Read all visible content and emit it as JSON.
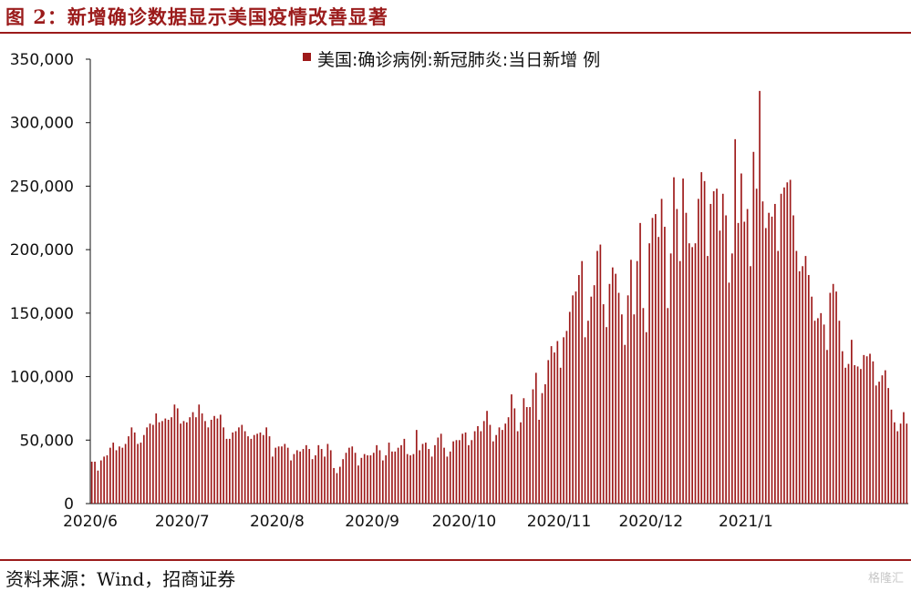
{
  "page": {
    "title": "图 2：新增确诊数据显示美国疫情改善显著",
    "source": "资料来源：Wind，招商证券",
    "watermark": "格隆汇"
  },
  "colors": {
    "accent": "#9b1b1b",
    "bar": "#9e1a1a"
  },
  "chart_data": {
    "type": "bar",
    "title": "",
    "xlabel": "",
    "ylabel": "",
    "ylim": [
      0,
      350000
    ],
    "y_ticks": [
      0,
      50000,
      100000,
      150000,
      200000,
      250000,
      300000,
      350000
    ],
    "y_tick_labels": [
      "0",
      "50,000",
      "100,000",
      "150,000",
      "200,000",
      "250,000",
      "300,000",
      "350,000"
    ],
    "x_ticks": [
      "2020/6",
      "2020/7",
      "2020/8",
      "2020/9",
      "2020/10",
      "2020/11",
      "2020/12",
      "2021/1"
    ],
    "grid": false,
    "legend_position": "top-center",
    "series": [
      {
        "name": "美国:确诊病例:新冠肺炎:当日新增 例",
        "values": [
          33000,
          33000,
          26000,
          34000,
          37000,
          38000,
          44000,
          48000,
          42000,
          45000,
          44000,
          47000,
          53000,
          60000,
          56000,
          47000,
          48000,
          54000,
          60000,
          63000,
          62000,
          71000,
          64000,
          65000,
          67000,
          66000,
          68000,
          78000,
          75000,
          63000,
          65000,
          64000,
          68000,
          72000,
          68000,
          78000,
          71000,
          65000,
          60000,
          66000,
          69000,
          67000,
          70000,
          60000,
          51000,
          51000,
          56000,
          57000,
          60000,
          62000,
          57000,
          53000,
          51000,
          54000,
          55000,
          56000,
          54000,
          60000,
          53000,
          37000,
          44000,
          45000,
          45000,
          47000,
          44000,
          34000,
          39000,
          42000,
          41000,
          43000,
          46000,
          43000,
          35000,
          38000,
          46000,
          43000,
          37000,
          47000,
          42000,
          28000,
          24000,
          29000,
          35000,
          40000,
          44000,
          45000,
          40000,
          30000,
          36000,
          39000,
          38000,
          38000,
          40000,
          46000,
          42000,
          34000,
          38000,
          48000,
          41000,
          41000,
          44000,
          46000,
          51000,
          39000,
          38000,
          39000,
          58000,
          42000,
          47000,
          48000,
          43000,
          37000,
          46000,
          52000,
          55000,
          44000,
          37000,
          41000,
          49000,
          50000,
          50000,
          55000,
          56000,
          46000,
          50000,
          57000,
          61000,
          57000,
          65000,
          73000,
          62000,
          49000,
          54000,
          60000,
          58000,
          63000,
          68000,
          86000,
          75000,
          57000,
          64000,
          83000,
          76000,
          76000,
          90000,
          103000,
          66000,
          87000,
          94000,
          113000,
          124000,
          119000,
          128000,
          107000,
          131000,
          136000,
          151000,
          164000,
          167000,
          180000,
          191000,
          131000,
          144000,
          163000,
          172000,
          199000,
          204000,
          157000,
          139000,
          173000,
          186000,
          181000,
          166000,
          149000,
          125000,
          164000,
          192000,
          149000,
          191000,
          221000,
          154000,
          135000,
          205000,
          225000,
          228000,
          210000,
          240000,
          218000,
          154000,
          197000,
          257000,
          232000,
          191000,
          256000,
          229000,
          205000,
          202000,
          205000,
          240000,
          261000,
          254000,
          195000,
          236000,
          246000,
          248000,
          215000,
          244000,
          227000,
          174000,
          197000,
          287000,
          221000,
          260000,
          222000,
          232000,
          187000,
          277000,
          248000,
          325000,
          238000,
          217000,
          229000,
          226000,
          236000,
          199000,
          244000,
          249000,
          253000,
          255000,
          227000,
          199000,
          183000,
          187000,
          195000,
          180000,
          163000,
          144000,
          146000,
          150000,
          141000,
          121000,
          166000,
          173000,
          167000,
          144000,
          120000,
          107000,
          110000,
          129000,
          109000,
          108000,
          106000,
          117000,
          116000,
          118000,
          112000,
          93000,
          96000,
          101000,
          105000,
          91000,
          74000,
          64000,
          57000,
          63000,
          72000,
          63000
        ]
      }
    ]
  }
}
